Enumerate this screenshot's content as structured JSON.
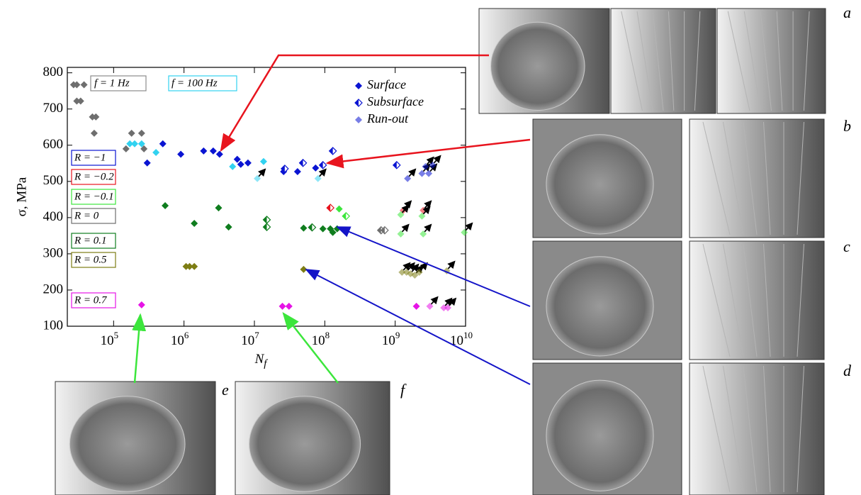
{
  "chart_data": {
    "type": "scatter",
    "y_label": "σ, MPa",
    "x_label": {
      "text": "N",
      "subscript": "f"
    },
    "log_x": true,
    "xlim": [
      22000,
      10000000000
    ],
    "ylim": [
      100,
      815
    ],
    "xticks": [
      {
        "value": 100000,
        "label": "10",
        "sup": "5"
      },
      {
        "value": 1000000,
        "label": "10",
        "sup": "6"
      },
      {
        "value": 10000000,
        "label": "10",
        "sup": "7"
      },
      {
        "value": 100000000,
        "label": "10",
        "sup": "8"
      },
      {
        "value": 1000000000,
        "label": "10",
        "sup": "9"
      },
      {
        "value": 10000000000,
        "label": "10",
        "sup": "10"
      }
    ],
    "yticks": [
      100,
      200,
      300,
      400,
      500,
      600,
      700,
      800
    ],
    "marker_legend": [
      "Surface",
      "Subsurface",
      "Run-out"
    ],
    "annotations": [
      {
        "text": "f = 1 Hz",
        "color": "#8c8c8c"
      }
    ],
    "series": [
      {
        "name": "R = −1",
        "color": "#0a14d2",
        "surface": {
          "x": [
            300000,
            500000,
            900000,
            1900000,
            2600000,
            3200000,
            5700000,
            6400000,
            8100000,
            26000000,
            41000000,
            74000000
          ],
          "values": [
            551,
            604,
            575,
            584,
            584,
            575,
            561,
            547,
            551,
            527,
            527,
            537
          ]
        },
        "subsurface": {
          "x": [
            27000000,
            49000000,
            94000000,
            130000000,
            1050000000
          ],
          "values": [
            535,
            551,
            545,
            584,
            545
          ]
        },
        "runout": {
          "x": [
            1500000000,
            2400000000,
            2700000000,
            3000000000,
            3400000000
          ],
          "values": [
            508,
            522,
            541,
            522,
            545
          ]
        }
      },
      {
        "name": "R = −0.2",
        "color": "#e8141e",
        "surface": {
          "x": [],
          "values": []
        },
        "subsurface": {
          "x": [
            120000000
          ],
          "values": [
            427
          ]
        },
        "runout": {
          "x": [
            1300000000,
            2500000000
          ],
          "values": [
            420,
            420
          ]
        }
      },
      {
        "name": "R = −0.1",
        "color": "#3ce63c",
        "surface": {
          "x": [
            160000000
          ],
          "values": [
            424
          ]
        },
        "subsurface": {
          "x": [
            200000000
          ],
          "values": [
            404
          ]
        },
        "runout": {
          "x": [
            1200000000,
            2400000000,
            1200000000,
            2500000000,
            9600000000
          ],
          "values": [
            408,
            404,
            355,
            355,
            359
          ]
        }
      },
      {
        "name": "R = 0",
        "color": "#6e6e6e",
        "surface": {
          "x": [
            27000,
            30000,
            38000,
            30000,
            34000,
            50000,
            56000,
            53000,
            150000,
            180000,
            250000,
            270000
          ],
          "values": [
            767,
            767,
            767,
            722,
            722,
            678,
            678,
            633,
            590,
            633,
            633,
            590
          ]
        },
        "subsurface": {
          "x": [
            66000000,
            630000000,
            710000000
          ],
          "values": [
            373,
            365,
            365
          ]
        },
        "runout": {
          "x": [],
          "values": []
        }
      },
      {
        "name": "R = 0.1",
        "color": "#0f7d1e",
        "surface": {
          "x": [
            540000,
            3100000,
            1400000,
            4300000,
            50000000,
            94000000,
            120000000,
            150000000,
            130000000
          ],
          "values": [
            433,
            427,
            384,
            374,
            371,
            369,
            369,
            369,
            359
          ]
        },
        "subsurface": {
          "x": [
            15000000,
            15000000,
            66000000
          ],
          "values": [
            394,
            374,
            373
          ]
        },
        "runout": {
          "x": [],
          "values": []
        }
      },
      {
        "name": "R = 0.5",
        "color": "#7d7d14",
        "surface": {
          "x": [
            1070000,
            1200000,
            1400000,
            50000000
          ],
          "values": [
            265,
            265,
            265,
            257
          ]
        },
        "subsurface": {
          "x": [],
          "values": []
        },
        "runout": {
          "x": [
            1250000000,
            1450000000,
            1650000000,
            1900000000,
            2200000000,
            5400000000
          ],
          "values": [
            249,
            249,
            245,
            241,
            249,
            253
          ]
        }
      },
      {
        "name": "R = 0.7",
        "color": "#e614e6",
        "surface": {
          "x": [
            250000,
            25000000,
            31000000,
            2000000000
          ],
          "values": [
            159,
            155,
            155,
            155
          ]
        },
        "subsurface": {
          "x": [],
          "values": []
        },
        "runout": {
          "x": [
            3100000000,
            4900000000,
            5600000000
          ],
          "values": [
            155,
            151,
            151
          ]
        }
      },
      {
        "name": "f = 100 Hz",
        "color": "#32d2f0",
        "surface": {
          "x": [
            170000,
            199000,
            250000,
            400000,
            4900000,
            13500000
          ],
          "values": [
            604,
            604,
            604,
            580,
            541,
            555
          ]
        },
        "subsurface": {
          "x": [],
          "values": []
        },
        "runout": {
          "x": [
            11000000,
            80000000
          ],
          "values": [
            508,
            508
          ]
        }
      }
    ]
  },
  "panels": [
    {
      "label": "a"
    },
    {
      "label": "b"
    },
    {
      "label": "c"
    },
    {
      "label": "d"
    },
    {
      "label": "e"
    },
    {
      "label": "f"
    }
  ]
}
